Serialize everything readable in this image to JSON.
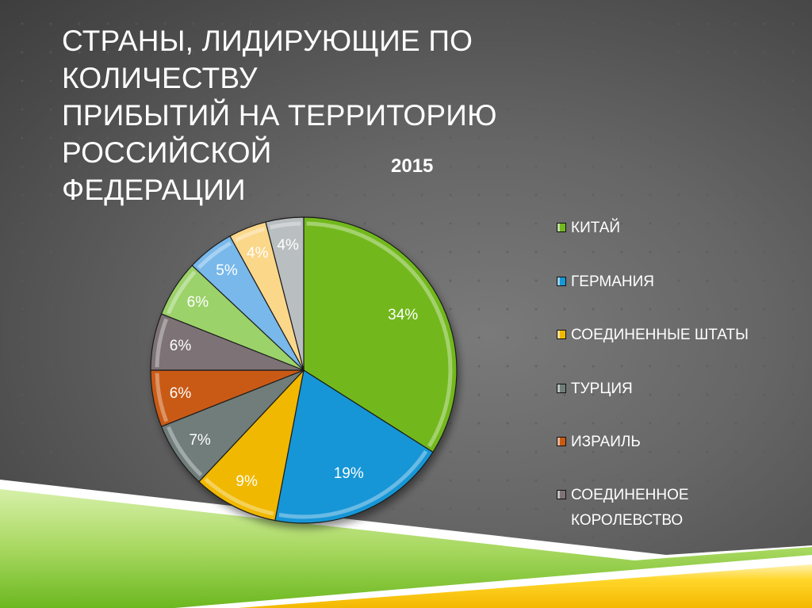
{
  "slide": {
    "title_lines": [
      "СТРАНЫ, ЛИДИРУЮЩИЕ ПО КОЛИЧЕСТВУ",
      "ПРИБЫТИЙ НА ТЕРРИТОРИЮ РОССИЙСКОЙ",
      "ФЕДЕРАЦИИ"
    ]
  },
  "chart_data": {
    "type": "pie",
    "title": "2015",
    "start_angle_deg": 0,
    "direction": "clockwise",
    "categories": [
      "КИТАЙ",
      "ГЕРМАНИЯ",
      "СОЕДИНЕННЫЕ ШТАТЫ",
      "ТУРЦИЯ",
      "ИЗРАИЛЬ",
      "СОЕДИНЕННОЕ КОРОЛЕВСТВО",
      "(unlabeled 7)",
      "(unlabeled 8)",
      "(unlabeled 9)",
      "(unlabeled 10)"
    ],
    "values": [
      34,
      19,
      9,
      7,
      6,
      6,
      6,
      5,
      4,
      4
    ],
    "data_labels": [
      "34%",
      "19%",
      "9%",
      "7%",
      "6%",
      "6%",
      "6%",
      "5%",
      "4%",
      "4%"
    ],
    "colors": [
      "#72b81e",
      "#1996d6",
      "#f0b800",
      "#6f7d7a",
      "#c95a12",
      "#7d7274",
      "#9bd26a",
      "#78b8ea",
      "#fbd78a",
      "#b9bec0"
    ],
    "legend": {
      "position": "right",
      "entries": [
        {
          "label": "КИТАЙ",
          "color": "#72b81e"
        },
        {
          "label": "ГЕРМАНИЯ",
          "color": "#1996d6"
        },
        {
          "label": "СОЕДИНЕННЫЕ ШТАТЫ",
          "color": "#f0b800"
        },
        {
          "label": "ТУРЦИЯ",
          "color": "#6f7d7a"
        },
        {
          "label": "ИЗРАИЛЬ",
          "color": "#c95a12"
        },
        {
          "label": "СОЕДИНЕННОЕ КОРОЛЕВСТВО",
          "color": "#7d7274"
        }
      ],
      "wrapped_last": [
        "СОЕДИНЕННОЕ",
        "КОРОЛЕВСТВО"
      ]
    }
  }
}
